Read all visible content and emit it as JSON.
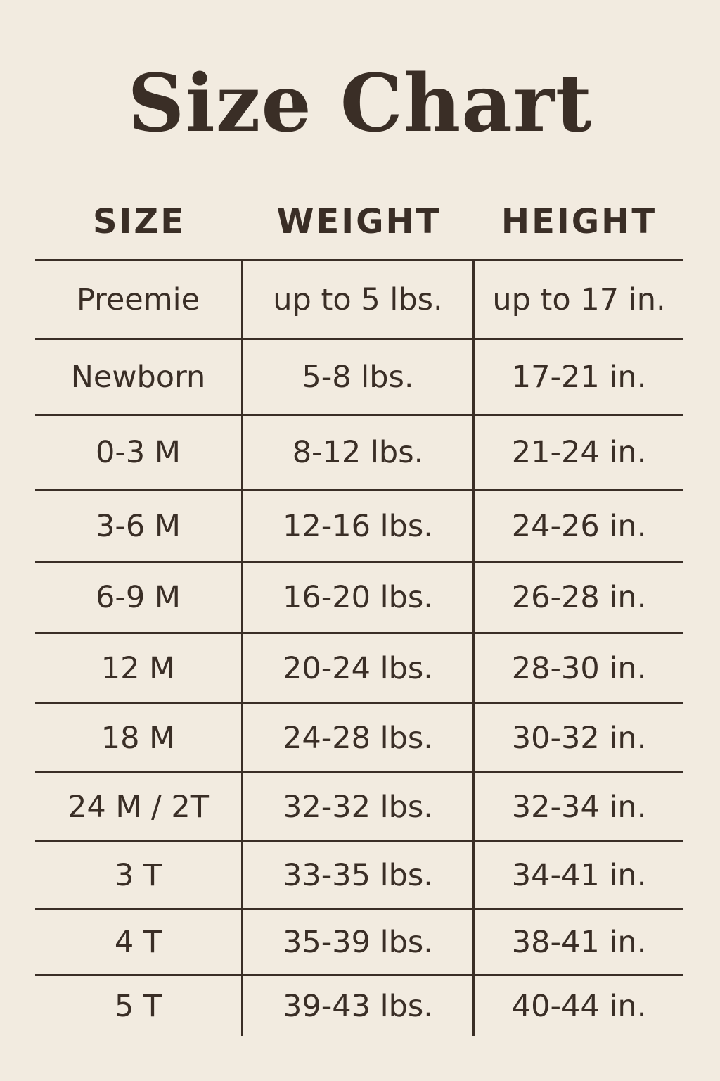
{
  "title": "Size Chart",
  "columns": [
    "SIZE",
    "WEIGHT",
    "HEIGHT"
  ],
  "rows": [
    [
      "Preemie",
      "up to 5 lbs.",
      "up to 17 in."
    ],
    [
      "Newborn",
      "5-8 lbs.",
      "17-21 in."
    ],
    [
      "0-3 M",
      "8-12 lbs.",
      "21-24 in."
    ],
    [
      "3-6 M",
      "12-16 lbs.",
      "24-26 in."
    ],
    [
      "6-9 M",
      "16-20 lbs.",
      "26-28 in."
    ],
    [
      "12 M",
      "20-24 lbs.",
      "28-30 in."
    ],
    [
      "18 M",
      "24-28 lbs.",
      "30-32 in."
    ],
    [
      "24 M / 2T",
      "32-32 lbs.",
      "32-34 in."
    ],
    [
      "3 T",
      "33-35 lbs.",
      "34-41 in."
    ],
    [
      "4 T",
      "35-39 lbs.",
      "38-41 in."
    ],
    [
      "5 T",
      "39-43 lbs.",
      "40-44 in."
    ]
  ],
  "colors": {
    "background": "#f2ebe0",
    "text": "#3a2e26"
  }
}
